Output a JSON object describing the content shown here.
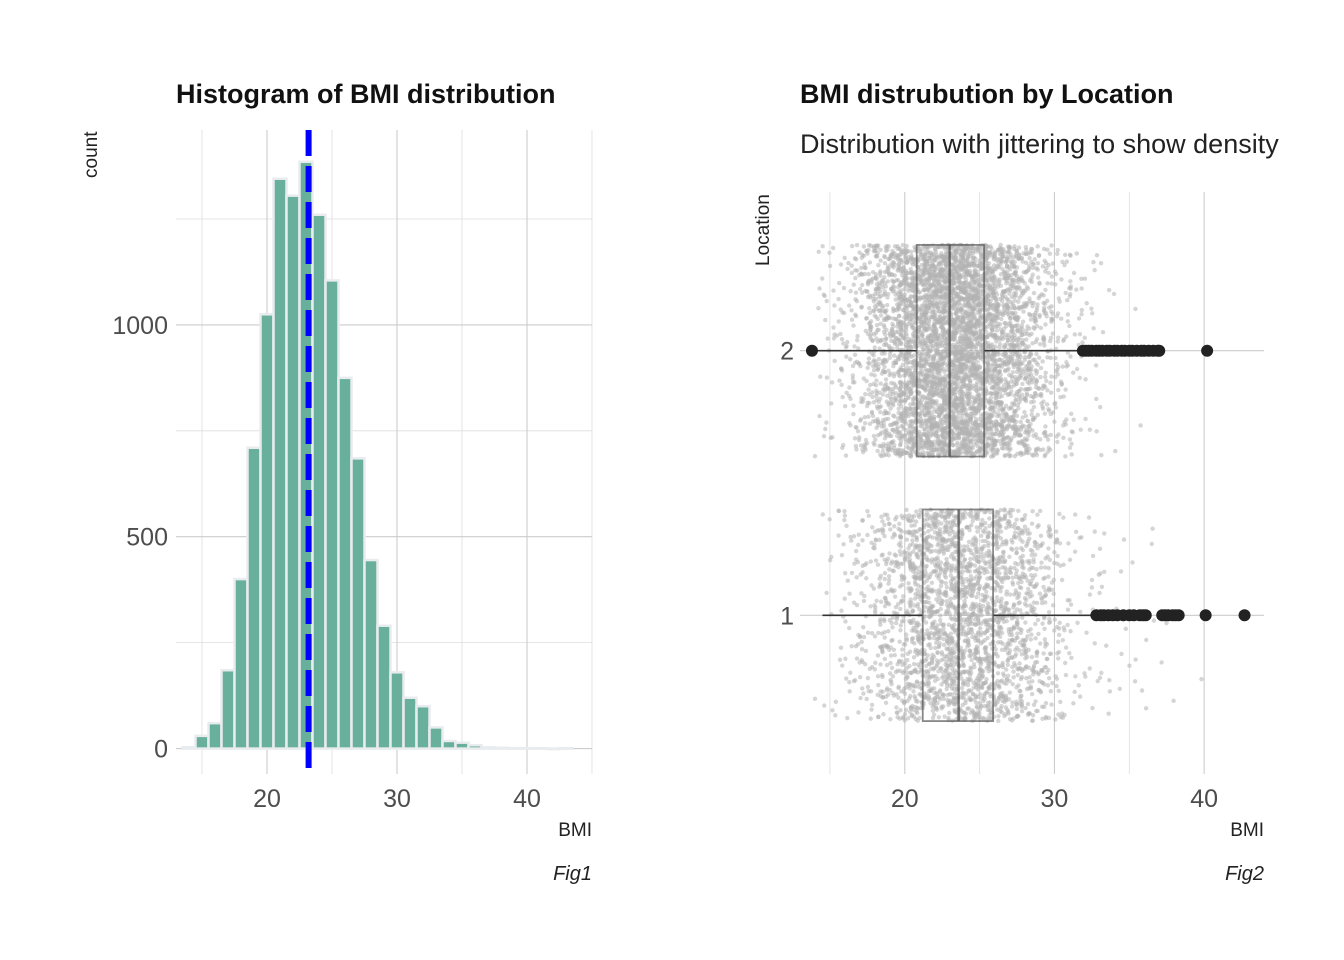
{
  "chart_data": [
    {
      "type": "bar",
      "title": "Histogram of BMI distribution",
      "xlabel": "BMI",
      "ylabel": "count",
      "caption": "Fig1",
      "xlim": [
        13,
        45
      ],
      "ylim": [
        -60,
        1460
      ],
      "xticks": [
        "20",
        "30",
        "40"
      ],
      "xtick_values": [
        20,
        30,
        40
      ],
      "yticks": [
        "0",
        "500",
        "1000"
      ],
      "ytick_values": [
        0,
        500,
        1000
      ],
      "bin_width": 1,
      "bins": [
        {
          "x": 14,
          "count": 3
        },
        {
          "x": 15,
          "count": 30
        },
        {
          "x": 16,
          "count": 60
        },
        {
          "x": 17,
          "count": 185
        },
        {
          "x": 18,
          "count": 400
        },
        {
          "x": 19,
          "count": 710
        },
        {
          "x": 20,
          "count": 1025
        },
        {
          "x": 21,
          "count": 1345
        },
        {
          "x": 22,
          "count": 1305
        },
        {
          "x": 23,
          "count": 1385
        },
        {
          "x": 24,
          "count": 1260
        },
        {
          "x": 25,
          "count": 1105
        },
        {
          "x": 26,
          "count": 875
        },
        {
          "x": 27,
          "count": 685
        },
        {
          "x": 28,
          "count": 445
        },
        {
          "x": 29,
          "count": 290
        },
        {
          "x": 30,
          "count": 180
        },
        {
          "x": 31,
          "count": 120
        },
        {
          "x": 32,
          "count": 100
        },
        {
          "x": 33,
          "count": 50
        },
        {
          "x": 34,
          "count": 18
        },
        {
          "x": 35,
          "count": 14
        },
        {
          "x": 36,
          "count": 8
        },
        {
          "x": 37,
          "count": 3
        },
        {
          "x": 38,
          "count": 2
        },
        {
          "x": 39,
          "count": 1
        },
        {
          "x": 40,
          "count": 1
        },
        {
          "x": 41,
          "count": 1
        },
        {
          "x": 42,
          "count": 0
        },
        {
          "x": 43,
          "count": 1
        }
      ],
      "mean_line": 23.2,
      "bar_color": "#69b09c",
      "bar_outline": "#e9ecef",
      "mean_line_color": "#0000ff",
      "grid": true
    },
    {
      "type": "boxplot",
      "title": "BMI distrubution by Location",
      "subtitle": "Distribution with jittering to show density",
      "xlabel": "BMI",
      "ylabel": "Location",
      "caption": "Fig2",
      "xlim": [
        13,
        44
      ],
      "xticks": [
        "20",
        "30",
        "40"
      ],
      "xtick_values": [
        20,
        30,
        40
      ],
      "categories": [
        "1",
        "2"
      ],
      "boxes": [
        {
          "category": "1",
          "min": 14.5,
          "q1": 21.2,
          "median": 23.6,
          "q3": 25.9,
          "max": 32.7,
          "outliers": [
            32.8,
            33.1,
            33.3,
            33.6,
            33.9,
            34.2,
            34.6,
            35.0,
            35.3,
            35.7,
            35.9,
            36.1,
            37.2,
            37.4,
            37.6,
            37.9,
            38.1,
            38.3,
            40.1,
            42.7
          ]
        },
        {
          "category": "2",
          "min": 13.8,
          "q1": 20.8,
          "median": 23.0,
          "q3": 25.3,
          "max": 31.8,
          "outliers": [
            31.9,
            32.1,
            32.3,
            32.5,
            32.8,
            33.0,
            33.2,
            33.5,
            33.7,
            34.0,
            34.2,
            34.5,
            34.7,
            35.0,
            35.2,
            35.5,
            35.8,
            36.0,
            36.3,
            36.6,
            36.9,
            37.0,
            40.2
          ]
        }
      ],
      "jitter_points_color": "#b3b3b3",
      "outlier_color": "#222222",
      "grid": true
    }
  ]
}
